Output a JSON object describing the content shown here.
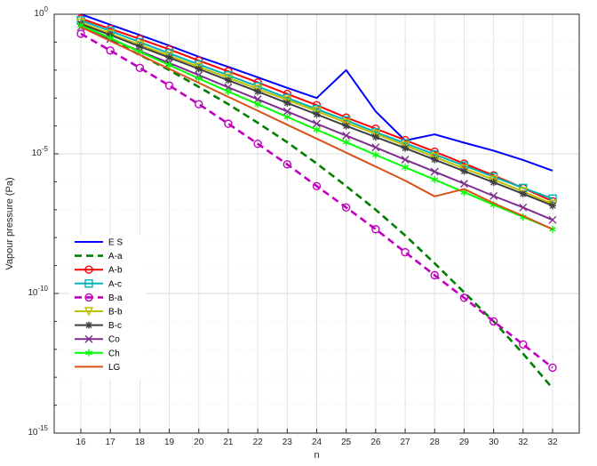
{
  "chart_data": {
    "type": "line",
    "xlabel": "n",
    "ylabel": "Vapour pressure (Pa)",
    "yscale": "log",
    "ylim": [
      1e-15,
      1
    ],
    "grid": true,
    "legend_position": "lower-left",
    "x": [
      16,
      17,
      18,
      19,
      20,
      21,
      22,
      23,
      24,
      25,
      26,
      27,
      28,
      29,
      30,
      32,
      32
    ],
    "x_tick_labels": [
      "16",
      "17",
      "18",
      "19",
      "20",
      "21",
      "22",
      "23",
      "24",
      "25",
      "26",
      "27",
      "28",
      "29",
      "30",
      "32",
      "32"
    ],
    "y_ticks": [
      {
        "base": "10",
        "exp": "0"
      },
      {
        "base": "10",
        "exp": "-5"
      },
      {
        "base": "10",
        "exp": "-10"
      },
      {
        "base": "10",
        "exp": "-15"
      }
    ],
    "series": [
      {
        "name": "E S",
        "color": "#0000ff",
        "dash": "solid",
        "marker": "none",
        "values": [
          1.0,
          0.42,
          0.18,
          0.075,
          0.03,
          0.013,
          0.0055,
          0.0023,
          0.001,
          0.01,
          0.00033,
          3e-05,
          5e-05,
          2.5e-05,
          1.3e-05,
          6e-06,
          2.5e-06
        ]
      },
      {
        "name": "A-a",
        "color": "#008000",
        "dash": "dashed",
        "marker": "none",
        "values": [
          0.4,
          0.12,
          0.035,
          0.01,
          0.0025,
          0.0006,
          0.00013,
          2.6e-05,
          4.5e-06,
          7e-07,
          1e-07,
          1.2e-08,
          1.2e-09,
          1.1e-10,
          1e-11,
          7e-13,
          4e-14
        ]
      },
      {
        "name": "A-b",
        "color": "#ff0000",
        "dash": "solid",
        "marker": "circle",
        "values": [
          0.7,
          0.3,
          0.13,
          0.055,
          0.022,
          0.009,
          0.0036,
          0.0014,
          0.00055,
          0.0002,
          8e-05,
          3.1e-05,
          1.2e-05,
          4.5e-06,
          1.7e-06,
          6e-07,
          2e-07
        ]
      },
      {
        "name": "A-c",
        "color": "#00b3b3",
        "dash": "solid",
        "marker": "square",
        "values": [
          0.6,
          0.25,
          0.1,
          0.04,
          0.016,
          0.0065,
          0.0026,
          0.001,
          0.0004,
          0.00016,
          6e-05,
          2.4e-05,
          9.5e-06,
          3.8e-06,
          1.5e-06,
          6e-07,
          2.5e-07
        ]
      },
      {
        "name": "B-a",
        "color": "#bf00bf",
        "dash": "dashed",
        "marker": "circle",
        "values": [
          0.2,
          0.05,
          0.012,
          0.0028,
          0.0006,
          0.00012,
          2.3e-05,
          4.2e-06,
          7e-07,
          1.2e-07,
          2e-08,
          3e-09,
          4.5e-10,
          7e-11,
          1e-11,
          1.5e-12,
          2.2e-13
        ]
      },
      {
        "name": "B-b",
        "color": "#bfbf00",
        "dash": "solid",
        "marker": "triangle-down",
        "values": [
          0.5,
          0.2,
          0.08,
          0.033,
          0.013,
          0.0053,
          0.0021,
          0.00085,
          0.00034,
          0.00013,
          5.2e-05,
          2e-05,
          7.8e-06,
          3e-06,
          1.2e-06,
          4.5e-07,
          1.6e-07
        ]
      },
      {
        "name": "B-c",
        "color": "#404040",
        "dash": "solid",
        "marker": "star",
        "values": [
          0.45,
          0.18,
          0.07,
          0.028,
          0.011,
          0.0043,
          0.0017,
          0.00066,
          0.00026,
          0.0001,
          4e-05,
          1.6e-05,
          6.2e-06,
          2.4e-06,
          9.5e-07,
          3.7e-07,
          1.4e-07
        ]
      },
      {
        "name": "Co",
        "color": "#7e2f8e",
        "dash": "solid",
        "marker": "x",
        "values": [
          0.35,
          0.13,
          0.048,
          0.018,
          0.0066,
          0.0024,
          0.0009,
          0.00033,
          0.00012,
          4.5e-05,
          1.7e-05,
          6.2e-06,
          2.3e-06,
          8.5e-07,
          3.1e-07,
          1.2e-07,
          4.3e-08
        ]
      },
      {
        "name": "Ch",
        "color": "#00ff00",
        "dash": "solid",
        "marker": "asterisk",
        "values": [
          0.4,
          0.14,
          0.045,
          0.015,
          0.005,
          0.0017,
          0.0006,
          0.00021,
          7.3e-05,
          2.6e-05,
          9.2e-06,
          3.3e-06,
          1.2e-06,
          4.2e-07,
          1.5e-07,
          5.5e-08,
          2e-08
        ]
      },
      {
        "name": "LG",
        "color": "#d95319",
        "dash": "solid",
        "marker": "none",
        "values": [
          0.35,
          0.11,
          0.035,
          0.011,
          0.0035,
          0.0011,
          0.00035,
          0.00011,
          3.5e-05,
          1.1e-05,
          3.5e-06,
          1.1e-06,
          3e-07,
          5.5e-07,
          1.7e-07,
          6e-08,
          2e-08
        ]
      }
    ]
  }
}
